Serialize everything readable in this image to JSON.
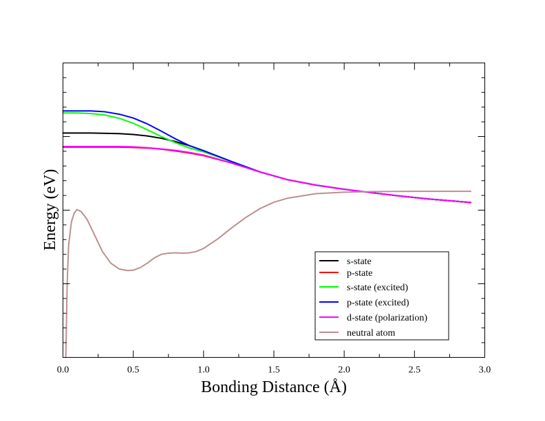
{
  "chart_data": {
    "type": "line",
    "title": "",
    "xlabel": "Bonding Distance (Å)",
    "ylabel": "Energy (eV)",
    "xlim": [
      0,
      3.0
    ],
    "ylim": [
      0,
      1
    ],
    "y_tick_labels_shown": false,
    "x_ticks": [
      "0.0",
      "0.5",
      "1.0",
      "1.5",
      "2.0",
      "2.5",
      "3.0"
    ],
    "grid": false,
    "legend_position": "bottom-right",
    "series": [
      {
        "name": "s-state",
        "color": "#000000",
        "x": [
          0.0,
          0.2,
          0.4,
          0.5,
          0.6,
          0.7,
          0.8,
          0.9,
          1.0,
          1.2,
          1.4,
          1.6,
          1.8,
          2.0,
          2.2,
          2.4,
          2.6,
          2.8,
          2.9
        ],
        "y": [
          0.762,
          0.762,
          0.76,
          0.757,
          0.752,
          0.744,
          0.733,
          0.719,
          0.702,
          0.665,
          0.63,
          0.603,
          0.585,
          0.571,
          0.559,
          0.548,
          0.538,
          0.53,
          0.526
        ]
      },
      {
        "name": "p-state",
        "color": "#ff0000",
        "x": [
          0.0,
          0.2,
          0.4,
          0.5,
          0.6,
          0.7,
          0.8,
          0.9,
          1.0,
          1.2,
          1.4,
          1.6,
          1.8,
          2.0,
          2.2,
          2.4,
          2.6,
          2.8,
          2.9
        ],
        "y": [
          0.714,
          0.714,
          0.714,
          0.713,
          0.711,
          0.707,
          0.701,
          0.694,
          0.685,
          0.66,
          0.63,
          0.603,
          0.585,
          0.571,
          0.559,
          0.548,
          0.538,
          0.53,
          0.526
        ]
      },
      {
        "name": "s-state (excited)",
        "color": "#00ff00",
        "x": [
          0.0,
          0.1,
          0.2,
          0.3,
          0.4,
          0.5,
          0.6,
          0.7,
          0.8,
          0.9,
          1.0,
          1.2,
          1.4,
          1.6,
          1.8,
          2.0,
          2.2,
          2.4,
          2.6,
          2.8,
          2.9
        ],
        "y": [
          0.83,
          0.83,
          0.828,
          0.823,
          0.812,
          0.795,
          0.773,
          0.75,
          0.729,
          0.711,
          0.698,
          0.665,
          0.63,
          0.603,
          0.585,
          0.571,
          0.559,
          0.548,
          0.538,
          0.53,
          0.526
        ]
      },
      {
        "name": "p-state (excited)",
        "color": "#0000ff",
        "x": [
          0.0,
          0.1,
          0.2,
          0.3,
          0.4,
          0.5,
          0.6,
          0.7,
          0.8,
          0.9,
          1.0,
          1.2,
          1.4,
          1.6,
          1.8,
          2.0,
          2.2,
          2.4,
          2.6,
          2.8,
          2.9
        ],
        "y": [
          0.837,
          0.837,
          0.837,
          0.834,
          0.826,
          0.813,
          0.793,
          0.768,
          0.742,
          0.719,
          0.702,
          0.665,
          0.63,
          0.603,
          0.585,
          0.571,
          0.559,
          0.548,
          0.538,
          0.53,
          0.526
        ]
      },
      {
        "name": "d-state (polarization)",
        "color": "#ff00ff",
        "x": [
          0.0,
          0.2,
          0.4,
          0.5,
          0.6,
          0.7,
          0.8,
          0.9,
          1.0,
          1.2,
          1.4,
          1.6,
          1.8,
          2.0,
          2.2,
          2.4,
          2.6,
          2.8,
          2.9
        ],
        "y": [
          0.716,
          0.716,
          0.716,
          0.715,
          0.712,
          0.708,
          0.703,
          0.696,
          0.687,
          0.66,
          0.63,
          0.603,
          0.585,
          0.571,
          0.559,
          0.548,
          0.538,
          0.53,
          0.526
        ]
      },
      {
        "name": "neutral atom",
        "color": "#bc8f8f",
        "x": [
          0.02,
          0.025,
          0.03,
          0.04,
          0.06,
          0.08,
          0.1,
          0.13,
          0.17,
          0.22,
          0.28,
          0.34,
          0.4,
          0.46,
          0.5,
          0.55,
          0.6,
          0.65,
          0.7,
          0.75,
          0.8,
          0.85,
          0.9,
          0.95,
          1.0,
          1.1,
          1.2,
          1.3,
          1.4,
          1.5,
          1.6,
          1.8,
          2.0,
          2.2,
          2.5,
          2.8,
          2.9
        ],
        "y": [
          0.0,
          0.12,
          0.25,
          0.38,
          0.46,
          0.49,
          0.502,
          0.495,
          0.47,
          0.42,
          0.36,
          0.32,
          0.3,
          0.295,
          0.296,
          0.305,
          0.32,
          0.338,
          0.35,
          0.354,
          0.355,
          0.354,
          0.355,
          0.36,
          0.37,
          0.402,
          0.44,
          0.475,
          0.505,
          0.527,
          0.541,
          0.556,
          0.561,
          0.563,
          0.564,
          0.564,
          0.564
        ]
      }
    ]
  }
}
